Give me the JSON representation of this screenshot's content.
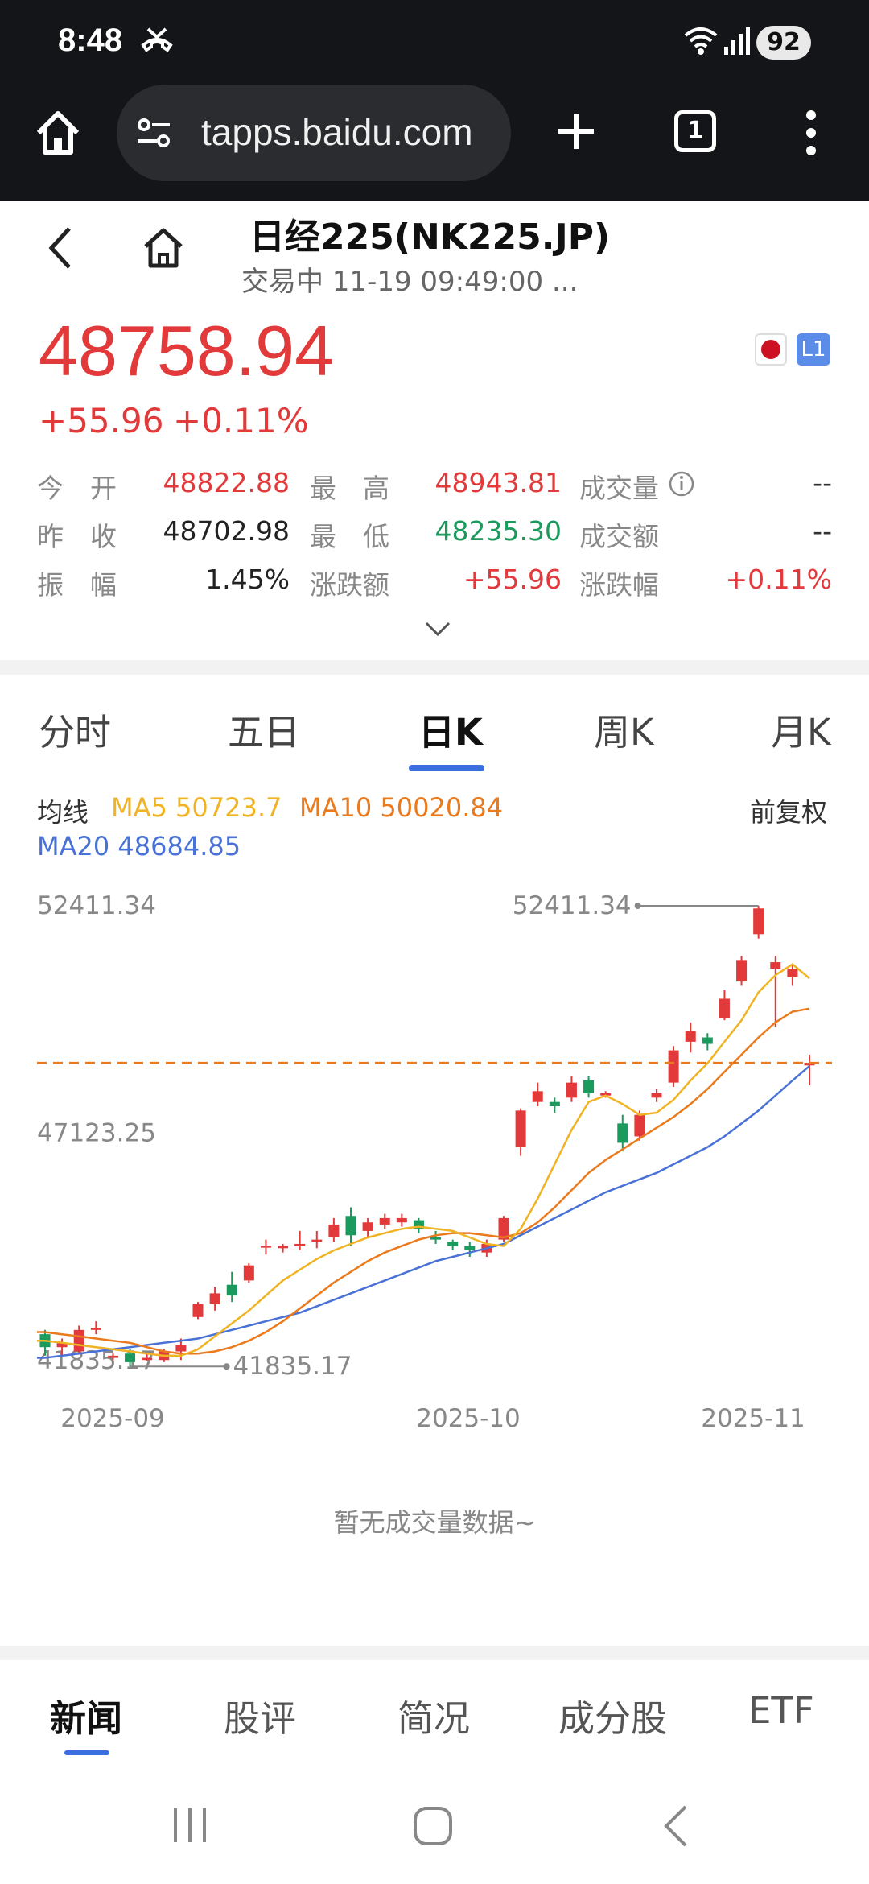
{
  "status": {
    "time": "8:48",
    "battery": "92"
  },
  "browser": {
    "url": "tapps.baidu.com",
    "tab_count": "1"
  },
  "header": {
    "title": "日经225(NK225.JP)",
    "subtitle": "交易中 11-19 09:49:00 ..."
  },
  "quote": {
    "price": "48758.94",
    "change": "+55.96",
    "change_pct": "+0.11%",
    "level_badge": "L1",
    "stats": {
      "open_label": "今　开",
      "open": "48822.88",
      "high_label": "最　高",
      "high": "48943.81",
      "volume_label": "成交量",
      "volume": "--",
      "prev_close_label": "昨　收",
      "prev_close": "48702.98",
      "low_label": "最　低",
      "low": "48235.30",
      "turnover_label": "成交额",
      "turnover": "--",
      "amplitude_label": "振　幅",
      "amplitude": "1.45%",
      "change_amt_label": "涨跌额",
      "change_amt": "+55.96",
      "change_pct_label": "涨跌幅",
      "change_pct": "+0.11%"
    }
  },
  "chart_tabs": [
    "分时",
    "五日",
    "日K",
    "周K",
    "月K"
  ],
  "active_chart_tab": 2,
  "ma": {
    "label": "均线",
    "ma5": "MA5 50723.7",
    "ma10": "MA10 50020.84",
    "ma20": "MA20 48684.85",
    "adjust": "前复权"
  },
  "colors": {
    "up": "#e23a3a",
    "down": "#1a9a5c",
    "ma5": "#f0b323",
    "ma10": "#ea7a1c",
    "ma20": "#4a72d6",
    "active_tab": "#3b6fe0"
  },
  "chart_data": {
    "type": "candlestick",
    "y_axis_labels": [
      "52411.34",
      "47123.25",
      "41835.17"
    ],
    "ylim": [
      41835.17,
      52411.34
    ],
    "x_labels": [
      "2025-09",
      "2025-10",
      "2025-11"
    ],
    "max_annotation": "52411.34",
    "min_annotation": "41835.17",
    "current_price_line": 48758.94,
    "candles": [
      [
        42450,
        42550,
        41950,
        42150
      ],
      [
        42150,
        42350,
        41950,
        42250
      ],
      [
        42050,
        42650,
        42000,
        42550
      ],
      [
        42550,
        42750,
        42450,
        42600
      ],
      [
        41900,
        42000,
        41850,
        41950
      ],
      [
        42000,
        42100,
        41700,
        41800
      ],
      [
        41850,
        42000,
        41835.17,
        41900
      ],
      [
        41850,
        42100,
        41800,
        42050
      ],
      [
        42050,
        42350,
        41850,
        42200
      ],
      [
        42850,
        43200,
        42800,
        43150
      ],
      [
        43150,
        43550,
        43000,
        43400
      ],
      [
        43600,
        43900,
        43200,
        43350
      ],
      [
        43700,
        44100,
        43650,
        44050
      ],
      [
        44500,
        44650,
        44300,
        44500
      ],
      [
        44450,
        44550,
        44350,
        44500
      ],
      [
        44500,
        44850,
        44400,
        44550
      ],
      [
        44600,
        44850,
        44450,
        44650
      ],
      [
        44700,
        45150,
        44600,
        45000
      ],
      [
        45200,
        45400,
        44500,
        44750
      ],
      [
        44850,
        45150,
        44700,
        45050
      ],
      [
        45000,
        45250,
        44900,
        45150
      ],
      [
        45050,
        45250,
        44950,
        45150
      ],
      [
        45100,
        45150,
        44800,
        44900
      ],
      [
        44700,
        44850,
        44550,
        44650
      ],
      [
        44600,
        44650,
        44400,
        44500
      ],
      [
        44500,
        44600,
        44250,
        44400
      ],
      [
        44350,
        44650,
        44250,
        44550
      ],
      [
        44650,
        45200,
        44600,
        45150
      ],
      [
        46800,
        47700,
        46600,
        47650
      ],
      [
        47850,
        48300,
        47750,
        48100
      ],
      [
        47850,
        47950,
        47600,
        47750
      ],
      [
        47950,
        48450,
        47850,
        48300
      ],
      [
        48350,
        48450,
        47950,
        48050
      ],
      [
        48000,
        48100,
        47950,
        48050
      ],
      [
        47350,
        47550,
        46700,
        46900
      ],
      [
        47050,
        47650,
        46950,
        47550
      ],
      [
        47950,
        48150,
        47850,
        48050
      ],
      [
        48300,
        49150,
        48200,
        49050
      ],
      [
        49250,
        49700,
        49000,
        49500
      ],
      [
        49350,
        49450,
        49050,
        49200
      ],
      [
        49800,
        50450,
        49750,
        50250
      ],
      [
        50650,
        51250,
        50550,
        51150
      ],
      [
        51750,
        52411.34,
        51650,
        52350
      ],
      [
        50950,
        51250,
        49600,
        51100
      ],
      [
        50750,
        51050,
        50550,
        50950
      ],
      [
        48700,
        48950,
        48235.3,
        48759
      ]
    ],
    "ma5": [
      42300,
      42250,
      42200,
      42150,
      42100,
      42050,
      42000,
      41950,
      41950,
      42100,
      42400,
      42700,
      43000,
      43350,
      43700,
      43950,
      44200,
      44400,
      44550,
      44700,
      44800,
      44900,
      44950,
      44900,
      44850,
      44700,
      44550,
      44500,
      44900,
      45600,
      46400,
      47200,
      47850,
      48000,
      47800,
      47550,
      47600,
      47900,
      48350,
      48750,
      49250,
      49750,
      50400,
      50800,
      51050,
      50724
    ],
    "ma10": [
      42500,
      42450,
      42400,
      42350,
      42300,
      42250,
      42150,
      42050,
      42000,
      42000,
      42050,
      42150,
      42300,
      42500,
      42750,
      43050,
      43350,
      43650,
      43900,
      44150,
      44350,
      44500,
      44650,
      44750,
      44800,
      44800,
      44750,
      44700,
      44800,
      45050,
      45400,
      45800,
      46200,
      46500,
      46750,
      47000,
      47250,
      47500,
      47800,
      48150,
      48550,
      48950,
      49350,
      49700,
      49950,
      50021
    ],
    "ma20": [
      41900,
      41950,
      42000,
      42050,
      42100,
      42150,
      42200,
      42250,
      42300,
      42350,
      42450,
      42550,
      42650,
      42750,
      42850,
      42950,
      43100,
      43250,
      43400,
      43550,
      43700,
      43850,
      44000,
      44150,
      44250,
      44350,
      44450,
      44550,
      44750,
      44950,
      45150,
      45350,
      45550,
      45750,
      45900,
      46050,
      46200,
      46400,
      46600,
      46800,
      47050,
      47350,
      47650,
      48000,
      48350,
      48685
    ]
  },
  "volume_empty": "暂无成交量数据~",
  "bottom_tabs": [
    "新闻",
    "股评",
    "简况",
    "成分股",
    "ETF"
  ],
  "active_bottom_tab": 0
}
